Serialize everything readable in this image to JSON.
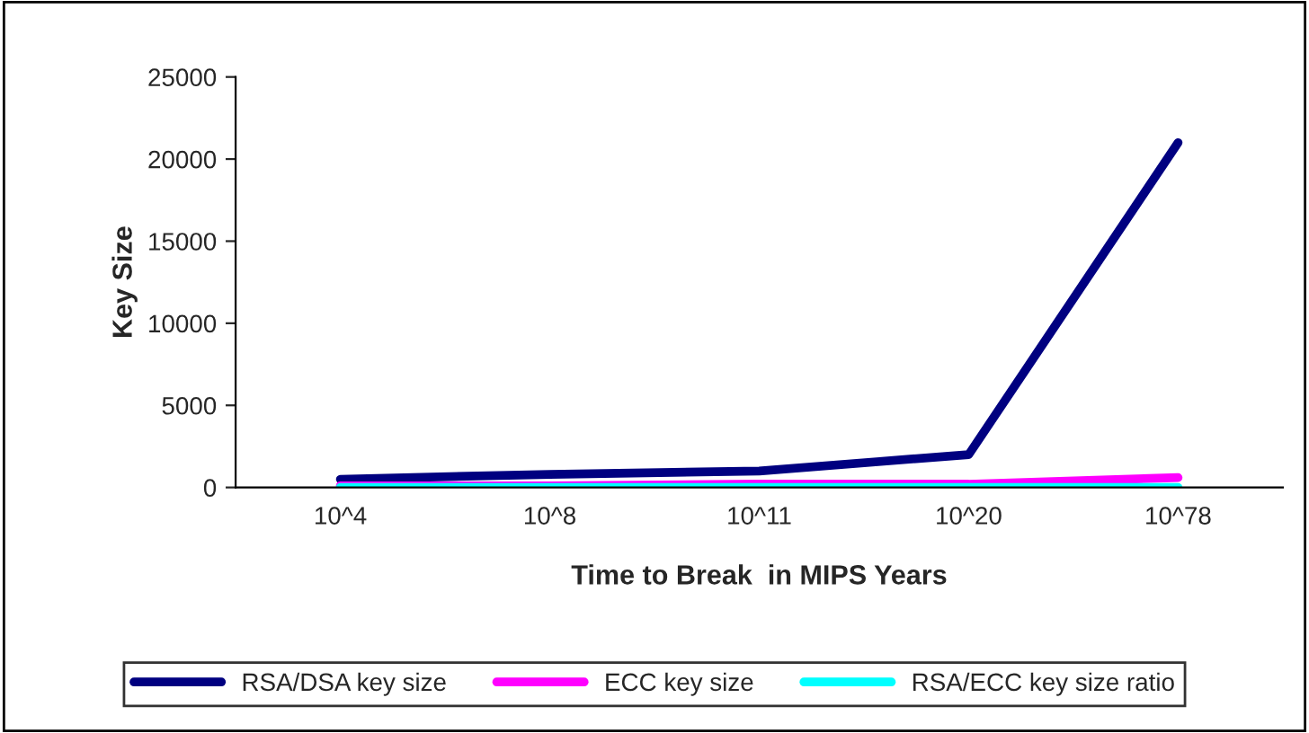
{
  "chart_data": {
    "type": "line",
    "xlabel": "Time to Break  in MIPS Years",
    "ylabel": "Key Size",
    "categories": [
      "10^4",
      "10^8",
      "10^11",
      "10^20",
      "10^78"
    ],
    "series": [
      {
        "name": "RSA/DSA key size",
        "color": "#000080",
        "values": [
          500,
          800,
          1000,
          2000,
          21000
        ]
      },
      {
        "name": "ECC key size",
        "color": "#ff00ff",
        "values": [
          100,
          100,
          200,
          200,
          600
        ]
      },
      {
        "name": "RSA/ECC key size ratio",
        "color": "#00ffff",
        "values": [
          0,
          0,
          0,
          0,
          0
        ]
      }
    ],
    "ylim": [
      0,
      25000
    ],
    "yticks": [
      0,
      5000,
      10000,
      15000,
      20000,
      25000
    ],
    "grid": false,
    "legend": "bottom"
  }
}
